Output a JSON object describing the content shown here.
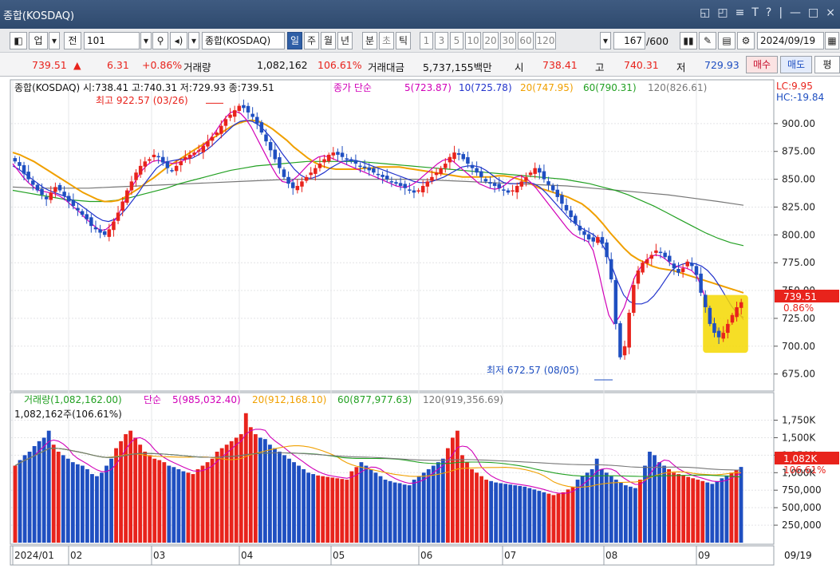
{
  "window": {
    "title": "종합(KOSDAQ)",
    "controls": [
      "◱",
      "◰",
      "≡",
      "T",
      "?",
      "|",
      "—",
      "□",
      "×"
    ]
  },
  "toolbar": {
    "type_label": "업",
    "prev_label": "전",
    "code_value": "101",
    "name_value": "종합(KOSDAQ)",
    "periods": [
      "일",
      "주",
      "월",
      "년",
      "분",
      "초",
      "틱"
    ],
    "selected_period": "일",
    "intervals": [
      "1",
      "3",
      "5",
      "10",
      "20",
      "30",
      "60",
      "120"
    ],
    "count_value": "167",
    "count_max": "/600",
    "date_value": "2024/09/19"
  },
  "quote": {
    "price": "739.51",
    "arrow": "▲",
    "change": "6.31",
    "change_pct": "+0.86%",
    "volume_label": "거래량",
    "volume": "1,082,162",
    "volume_ratio": "106.61%",
    "amount_label": "거래대금",
    "amount": "5,737,155백만",
    "open_label": "시",
    "open": "738.41",
    "high_label": "고",
    "high": "740.31",
    "low_label": "저",
    "low": "729.93",
    "buy_label": "매수",
    "sell_label": "매도",
    "eval_label": "평"
  },
  "colors": {
    "up": "#e8231c",
    "down": "#1f4fc1",
    "ma5": "#d100b8",
    "ma10": "#2233cc",
    "ma20": "#f0a000",
    "ma60": "#22a022",
    "ma120": "#777777",
    "highlight": "#f5d800"
  },
  "chart_data": [
    {
      "type": "candlestick",
      "title": "종합(KOSDAQ) 시:738.41 고:740.31 저:729.93 종:739.51",
      "ma_legend": {
        "prefix": "종가 단순",
        "ma5": "5(723.87)",
        "ma10": "10(725.78)",
        "ma20": "20(747.95)",
        "ma60": "60(790.31)",
        "ma120": "120(826.61)"
      },
      "lc": "LC:9.95",
      "hc": "HC:-19.84",
      "ylim": [
        664,
        925
      ],
      "yticks": [
        "675.00",
        "700.00",
        "725.00",
        "750.00",
        "775.00",
        "800.00",
        "825.00",
        "850.00",
        "875.00",
        "900.00"
      ],
      "current_tag": "739.51",
      "current_pct": "0.86%",
      "annotations": {
        "max_text": "최고 922.57 (03/26)",
        "min_text": "최저 672.57 (08/05)"
      },
      "closes": [
        866,
        862,
        855,
        850,
        845,
        840,
        836,
        832,
        838,
        843,
        840,
        835,
        830,
        826,
        822,
        818,
        814,
        808,
        805,
        802,
        800,
        805,
        812,
        820,
        830,
        840,
        848,
        856,
        862,
        866,
        868,
        872,
        870,
        865,
        860,
        858,
        862,
        866,
        870,
        872,
        874,
        876,
        880,
        884,
        888,
        892,
        898,
        904,
        908,
        912,
        916,
        914,
        910,
        906,
        900,
        892,
        884,
        876,
        868,
        860,
        852,
        846,
        842,
        844,
        848,
        852,
        856,
        860,
        864,
        868,
        872,
        874,
        872,
        870,
        868,
        866,
        864,
        862,
        860,
        858,
        856,
        854,
        852,
        850,
        848,
        846,
        844,
        842,
        840,
        838,
        840,
        844,
        848,
        852,
        856,
        860,
        864,
        870,
        874,
        872,
        868,
        864,
        860,
        856,
        852,
        848,
        846,
        844,
        842,
        840,
        838,
        840,
        844,
        848,
        852,
        856,
        860,
        856,
        850,
        845,
        840,
        834,
        828,
        822,
        816,
        810,
        804,
        800,
        796,
        794,
        798,
        792,
        780,
        760,
        720,
        690,
        700,
        730,
        755,
        768,
        775,
        778,
        782,
        786,
        784,
        780,
        776,
        770,
        766,
        770,
        776,
        772,
        764,
        748,
        735,
        720,
        712,
        708,
        712,
        720,
        728,
        735,
        739.51
      ],
      "ma_series": {
        "ma5": [
          864,
          858,
          852,
          847,
          843,
          840,
          839,
          838,
          837,
          835,
          832,
          828,
          824,
          820,
          815,
          811,
          807,
          804,
          805,
          809,
          815,
          824,
          834,
          843,
          851,
          858,
          863,
          866,
          867,
          866,
          865,
          864,
          865,
          867,
          869,
          872,
          876,
          881,
          886,
          892,
          899,
          905,
          910,
          911,
          909,
          904,
          897,
          888,
          879,
          870,
          861,
          853,
          848,
          847,
          849,
          853,
          858,
          863,
          867,
          870,
          871,
          870,
          868,
          866,
          864,
          862,
          860,
          858,
          856,
          854,
          852,
          850,
          848,
          846,
          844,
          843,
          843,
          845,
          848,
          852,
          856,
          860,
          864,
          867,
          868,
          866,
          862,
          858,
          854,
          850,
          846,
          844,
          842,
          841,
          842,
          845,
          849,
          852,
          853,
          851,
          847,
          842,
          836,
          830,
          824,
          818,
          812,
          806,
          801,
          798,
          796,
          794,
          786,
          768,
          747,
          728,
          720,
          726,
          735,
          749,
          762,
          770,
          776,
          780,
          782,
          781,
          778,
          774,
          772,
          771,
          770,
          768,
          763,
          752,
          738,
          725,
          715,
          712,
          716,
          722,
          730,
          723.87
        ],
        "ma10": [
          862,
          859,
          855,
          851,
          847,
          843,
          840,
          838,
          836,
          834,
          831,
          828,
          824,
          820,
          816,
          813,
          812,
          814,
          818,
          824,
          831,
          838,
          846,
          853,
          860,
          864,
          866,
          867,
          868,
          868,
          869,
          872,
          875,
          879,
          884,
          889,
          894,
          899,
          902,
          903,
          902,
          899,
          894,
          888,
          881,
          873,
          866,
          859,
          854,
          851,
          851,
          853,
          856,
          860,
          863,
          866,
          867,
          867,
          866,
          864,
          862,
          860,
          858,
          856,
          854,
          852,
          850,
          848,
          847,
          847,
          848,
          850,
          852,
          855,
          858,
          861,
          862,
          862,
          861,
          858,
          854,
          850,
          847,
          846,
          846,
          847,
          847,
          846,
          843,
          838,
          832,
          826,
          820,
          814,
          810,
          806,
          803,
          800,
          795,
          786,
          772,
          758,
          746,
          740,
          738,
          738,
          740,
          745,
          752,
          760,
          768,
          772,
          774,
          775,
          774,
          772,
          768,
          762,
          754,
          745,
          736,
          729,
          725.78
        ],
        "ma20": [
          874,
          872,
          869,
          866,
          862,
          858,
          854,
          850,
          846,
          842,
          838,
          835,
          832,
          830,
          830,
          831,
          834,
          838,
          842,
          847,
          851,
          856,
          861,
          865,
          869,
          873,
          877,
          881,
          885,
          889,
          893,
          897,
          900,
          902,
          903,
          902,
          899,
          895,
          890,
          885,
          879,
          874,
          869,
          865,
          862,
          860,
          859,
          859,
          859,
          859,
          860,
          860,
          861,
          861,
          861,
          861,
          860,
          859,
          858,
          857,
          856,
          855,
          854,
          853,
          852,
          852,
          852,
          852,
          852,
          853,
          853,
          852,
          850,
          848,
          845,
          842,
          840,
          838,
          836,
          834,
          831,
          828,
          823,
          817,
          810,
          802,
          795,
          788,
          782,
          778,
          775,
          772,
          770,
          769,
          768,
          766,
          764,
          762,
          760,
          758,
          756,
          754,
          752,
          750,
          747.95
        ],
        "ma60": [
          840,
          838,
          836,
          834,
          832,
          831,
          830,
          830,
          831,
          833,
          836,
          839,
          842,
          846,
          849,
          852,
          855,
          858,
          860,
          862,
          863,
          864,
          865,
          866,
          866,
          866,
          866,
          866,
          865,
          864,
          863,
          862,
          861,
          860,
          859,
          858,
          857,
          856,
          855,
          854,
          853,
          852,
          851,
          850,
          848,
          846,
          843,
          840,
          836,
          831,
          826,
          820,
          814,
          808,
          802,
          797,
          793,
          790.31
        ],
        "ma120": [
          843,
          842,
          842,
          842,
          843,
          844,
          845,
          846,
          847,
          848,
          849,
          850,
          850,
          850,
          850,
          850,
          850,
          849,
          848,
          847,
          846,
          845,
          844,
          842,
          840,
          838,
          836,
          833,
          830,
          826.61
        ]
      }
    },
    {
      "type": "bar",
      "title": "거래량(1,082,162.00)",
      "value_text": "1,082,162주(106.61%)",
      "ma_legend": {
        "prefix": "단순",
        "ma5": "5(985,032.40)",
        "ma20": "20(912,168.10)",
        "ma60": "60(877,977.63)",
        "ma120": "120(919,356.69)"
      },
      "ylim": [
        0,
        1870
      ],
      "yticks": [
        "250,000",
        "500,000",
        "750,000",
        "1,000K",
        "1,250K",
        "1,500K",
        "1,750K"
      ],
      "current_tag": "1,082K",
      "current_pct": "106.61%",
      "xticks": [
        "2024/01",
        "02",
        "03",
        "04",
        "05",
        "06",
        "07",
        "08",
        "09"
      ],
      "x_end_label": "09/19",
      "values": [
        1100,
        1180,
        1250,
        1300,
        1380,
        1450,
        1500,
        1600,
        1400,
        1300,
        1250,
        1200,
        1150,
        1120,
        1100,
        1050,
        980,
        950,
        1000,
        1100,
        1200,
        1350,
        1450,
        1550,
        1600,
        1500,
        1400,
        1300,
        1250,
        1200,
        1180,
        1150,
        1100,
        1080,
        1050,
        1020,
        1000,
        980,
        1050,
        1100,
        1150,
        1200,
        1300,
        1350,
        1400,
        1450,
        1500,
        1550,
        1850,
        1650,
        1550,
        1500,
        1480,
        1400,
        1350,
        1300,
        1250,
        1200,
        1150,
        1100,
        1050,
        1000,
        980,
        960,
        950,
        940,
        930,
        920,
        910,
        900,
        1020,
        1080,
        1150,
        1100,
        1050,
        1000,
        950,
        900,
        880,
        860,
        850,
        830,
        820,
        900,
        950,
        1000,
        1050,
        1100,
        1150,
        1200,
        1350,
        1500,
        1600,
        1250,
        1150,
        1050,
        1000,
        950,
        900,
        880,
        860,
        850,
        840,
        830,
        820,
        810,
        800,
        780,
        760,
        740,
        720,
        700,
        680,
        700,
        720,
        760,
        800,
        900,
        950,
        1000,
        1050,
        1200,
        1050,
        1000,
        950,
        900,
        860,
        820,
        800,
        780,
        900,
        1100,
        1300,
        1250,
        1150,
        1100,
        1050,
        1000,
        980,
        960,
        940,
        920,
        900,
        880,
        860,
        840,
        880,
        920,
        960,
        1000,
        1040,
        1082
      ]
    }
  ]
}
